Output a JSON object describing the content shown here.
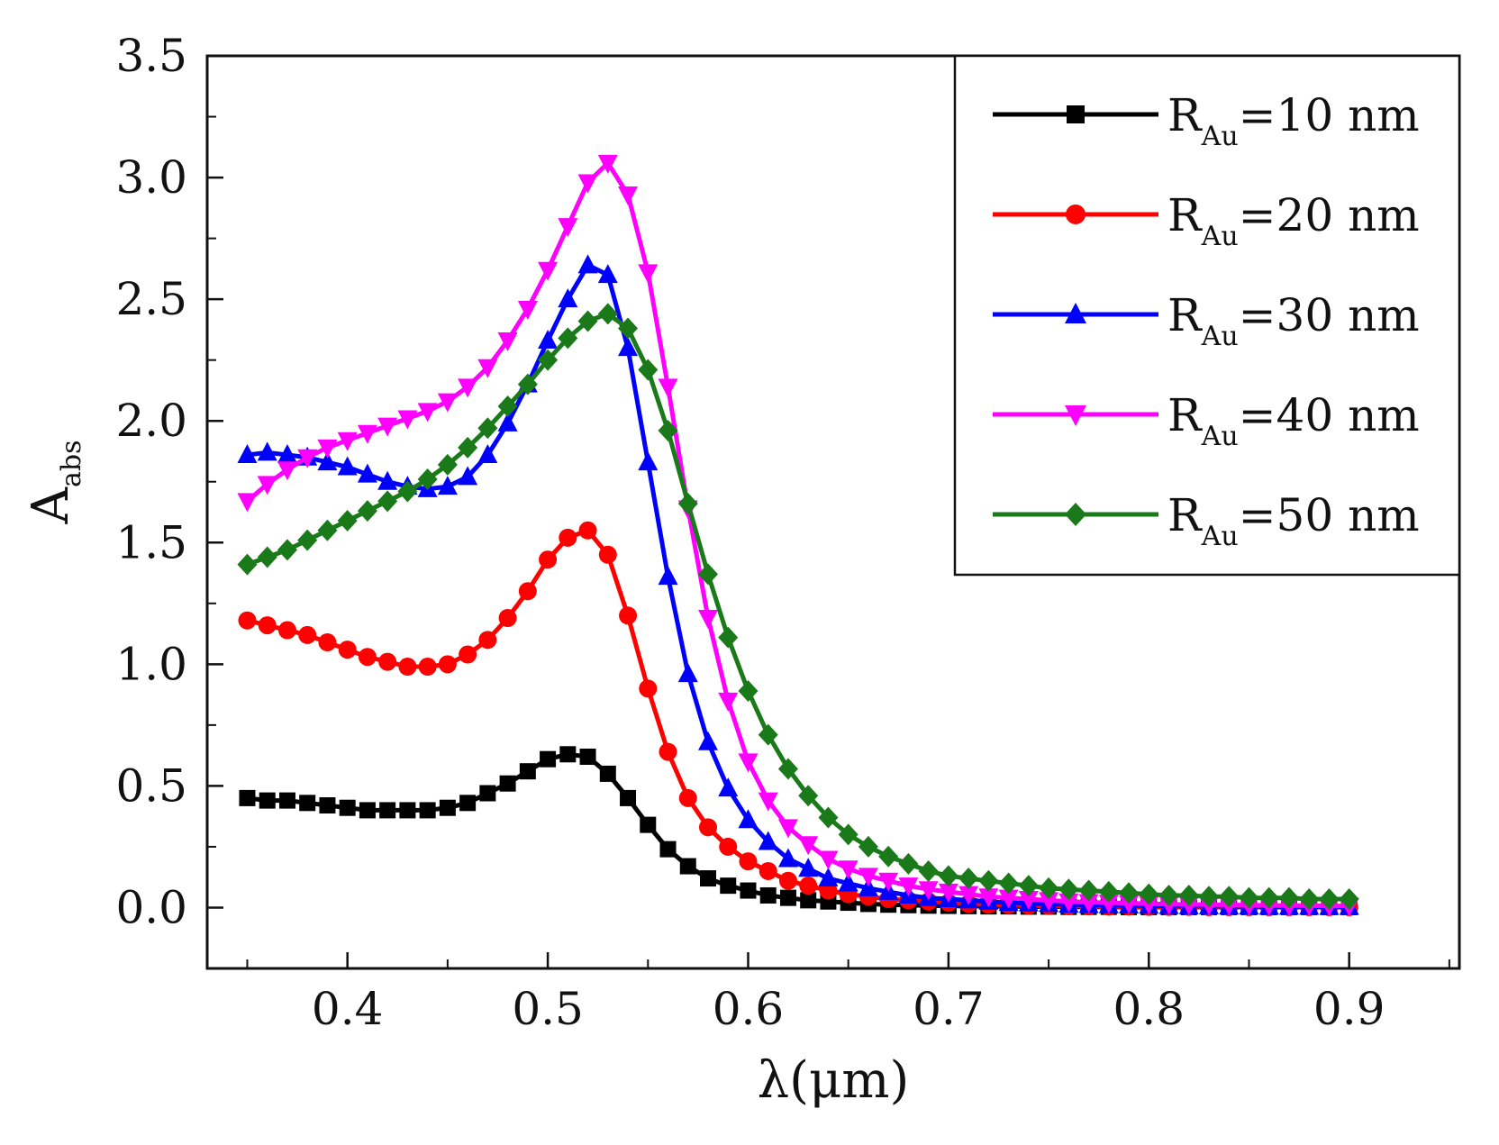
{
  "chart_data": {
    "type": "line",
    "xlabel": "λ(μm)",
    "ylabel": "A",
    "ylabel_sub": "abs",
    "xlim": [
      0.33,
      0.955
    ],
    "ylim": [
      -0.25,
      3.5
    ],
    "xticks": [
      0.4,
      0.5,
      0.6,
      0.7,
      0.8,
      0.9
    ],
    "xtick_labels": [
      "0.4",
      "0.5",
      "0.6",
      "0.7",
      "0.8",
      "0.9"
    ],
    "yticks": [
      0.0,
      0.5,
      1.0,
      1.5,
      2.0,
      2.5,
      3.0,
      3.5
    ],
    "ytick_labels": [
      "0.0",
      "0.5",
      "1.0",
      "1.5",
      "2.0",
      "2.5",
      "3.0",
      "3.5"
    ],
    "legend_position": "top-right",
    "x": [
      0.35,
      0.36,
      0.37,
      0.38,
      0.39,
      0.4,
      0.41,
      0.42,
      0.43,
      0.44,
      0.45,
      0.46,
      0.47,
      0.48,
      0.49,
      0.5,
      0.51,
      0.52,
      0.53,
      0.54,
      0.55,
      0.56,
      0.57,
      0.58,
      0.59,
      0.6,
      0.61,
      0.62,
      0.63,
      0.64,
      0.65,
      0.66,
      0.67,
      0.68,
      0.69,
      0.7,
      0.71,
      0.72,
      0.73,
      0.74,
      0.75,
      0.76,
      0.77,
      0.78,
      0.79,
      0.8,
      0.81,
      0.82,
      0.83,
      0.84,
      0.85,
      0.86,
      0.87,
      0.88,
      0.89,
      0.9
    ],
    "series": [
      {
        "name_prefix": "R",
        "name_sub": "Au",
        "name_suffix": "=10 nm",
        "color": "#000000",
        "marker": "square",
        "values": [
          0.45,
          0.44,
          0.44,
          0.43,
          0.42,
          0.41,
          0.4,
          0.4,
          0.4,
          0.4,
          0.41,
          0.43,
          0.47,
          0.51,
          0.56,
          0.61,
          0.63,
          0.62,
          0.55,
          0.45,
          0.34,
          0.24,
          0.17,
          0.12,
          0.09,
          0.07,
          0.05,
          0.04,
          0.03,
          0.025,
          0.02,
          0.015,
          0.012,
          0.01,
          0.008,
          0.007,
          0.006,
          0.005,
          0.005,
          0.004,
          0.004,
          0.003,
          0.003,
          0.003,
          0.002,
          0.002,
          0.002,
          0.002,
          0.002,
          0.002,
          0.002,
          0.002,
          0.002,
          0.002,
          0.002,
          0.002
        ]
      },
      {
        "name_prefix": "R",
        "name_sub": "Au",
        "name_suffix": "=20 nm",
        "color": "#ff0000",
        "marker": "circle",
        "values": [
          1.18,
          1.16,
          1.14,
          1.12,
          1.09,
          1.06,
          1.03,
          1.01,
          0.99,
          0.99,
          1.0,
          1.04,
          1.1,
          1.19,
          1.3,
          1.43,
          1.52,
          1.55,
          1.45,
          1.2,
          0.9,
          0.64,
          0.45,
          0.33,
          0.25,
          0.19,
          0.15,
          0.11,
          0.09,
          0.07,
          0.055,
          0.045,
          0.035,
          0.03,
          0.025,
          0.02,
          0.015,
          0.012,
          0.01,
          0.008,
          0.007,
          0.006,
          0.005,
          0.004,
          0.004,
          0.003,
          0.003,
          0.003,
          0.002,
          0.002,
          0.002,
          0.002,
          0.002,
          0.002,
          0.002,
          0.002
        ]
      },
      {
        "name_prefix": "R",
        "name_sub": "Au",
        "name_suffix": "=30 nm",
        "color": "#0000ff",
        "marker": "triangle-up",
        "values": [
          1.86,
          1.87,
          1.86,
          1.85,
          1.83,
          1.81,
          1.78,
          1.75,
          1.73,
          1.72,
          1.73,
          1.77,
          1.86,
          1.99,
          2.15,
          2.33,
          2.5,
          2.64,
          2.6,
          2.3,
          1.83,
          1.36,
          0.96,
          0.68,
          0.49,
          0.36,
          0.27,
          0.2,
          0.16,
          0.12,
          0.1,
          0.08,
          0.065,
          0.05,
          0.04,
          0.035,
          0.03,
          0.025,
          0.02,
          0.018,
          0.015,
          0.013,
          0.011,
          0.01,
          0.009,
          0.008,
          0.007,
          0.006,
          0.006,
          0.005,
          0.005,
          0.004,
          0.004,
          0.004,
          0.003,
          0.003
        ]
      },
      {
        "name_prefix": "R",
        "name_sub": "Au",
        "name_suffix": "=40 nm",
        "color": "#ff00ff",
        "marker": "triangle-down",
        "values": [
          1.67,
          1.74,
          1.8,
          1.85,
          1.89,
          1.92,
          1.95,
          1.98,
          2.01,
          2.04,
          2.08,
          2.14,
          2.22,
          2.33,
          2.46,
          2.62,
          2.8,
          2.98,
          3.06,
          2.93,
          2.61,
          2.14,
          1.64,
          1.19,
          0.85,
          0.6,
          0.44,
          0.33,
          0.26,
          0.2,
          0.16,
          0.13,
          0.11,
          0.09,
          0.075,
          0.065,
          0.055,
          0.045,
          0.04,
          0.035,
          0.03,
          0.025,
          0.022,
          0.02,
          0.018,
          0.016,
          0.014,
          0.013,
          0.012,
          0.011,
          0.01,
          0.009,
          0.008,
          0.008,
          0.007,
          0.007
        ]
      },
      {
        "name_prefix": "R",
        "name_sub": "Au",
        "name_suffix": "=50 nm",
        "color": "#1a7a1a",
        "marker": "diamond",
        "values": [
          1.41,
          1.44,
          1.47,
          1.51,
          1.55,
          1.59,
          1.63,
          1.67,
          1.71,
          1.76,
          1.82,
          1.89,
          1.97,
          2.06,
          2.15,
          2.25,
          2.34,
          2.41,
          2.44,
          2.38,
          2.21,
          1.96,
          1.66,
          1.37,
          1.11,
          0.89,
          0.71,
          0.57,
          0.46,
          0.37,
          0.3,
          0.25,
          0.21,
          0.18,
          0.15,
          0.13,
          0.12,
          0.11,
          0.1,
          0.09,
          0.08,
          0.075,
          0.07,
          0.065,
          0.06,
          0.055,
          0.05,
          0.05,
          0.045,
          0.045,
          0.04,
          0.04,
          0.04,
          0.035,
          0.035,
          0.035
        ]
      }
    ]
  }
}
